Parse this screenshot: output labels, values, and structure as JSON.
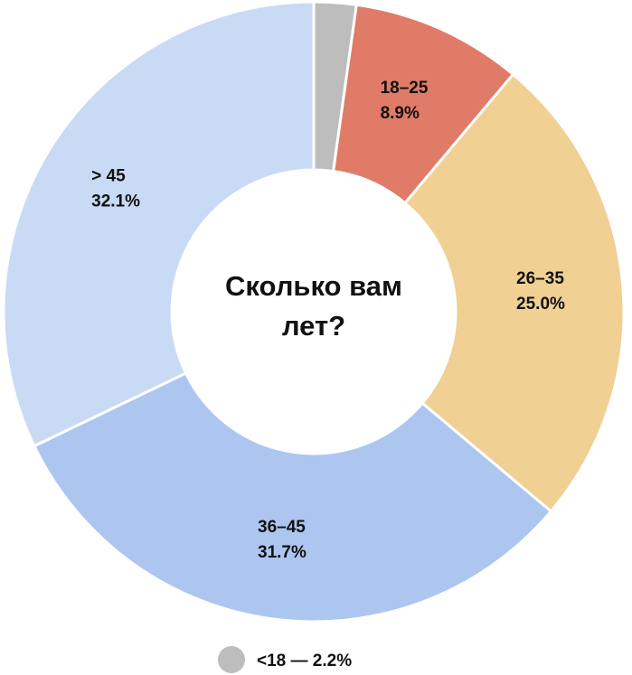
{
  "chart_data": {
    "type": "donut",
    "title": "Сколько вам лет?",
    "categories": [
      "<18",
      "18–25",
      "26–35",
      "36–45",
      "> 45"
    ],
    "values": [
      2.2,
      8.9,
      25.0,
      31.7,
      32.1
    ],
    "value_labels": [
      "2.2%",
      "8.9%",
      "25.0%",
      "31.7%",
      "32.1%"
    ],
    "colors": [
      "#bdbdbd",
      "#e07b67",
      "#f0d093",
      "#adc6ef",
      "#c9daf4"
    ],
    "legend": [
      "<18 — 2.2%"
    ]
  }
}
